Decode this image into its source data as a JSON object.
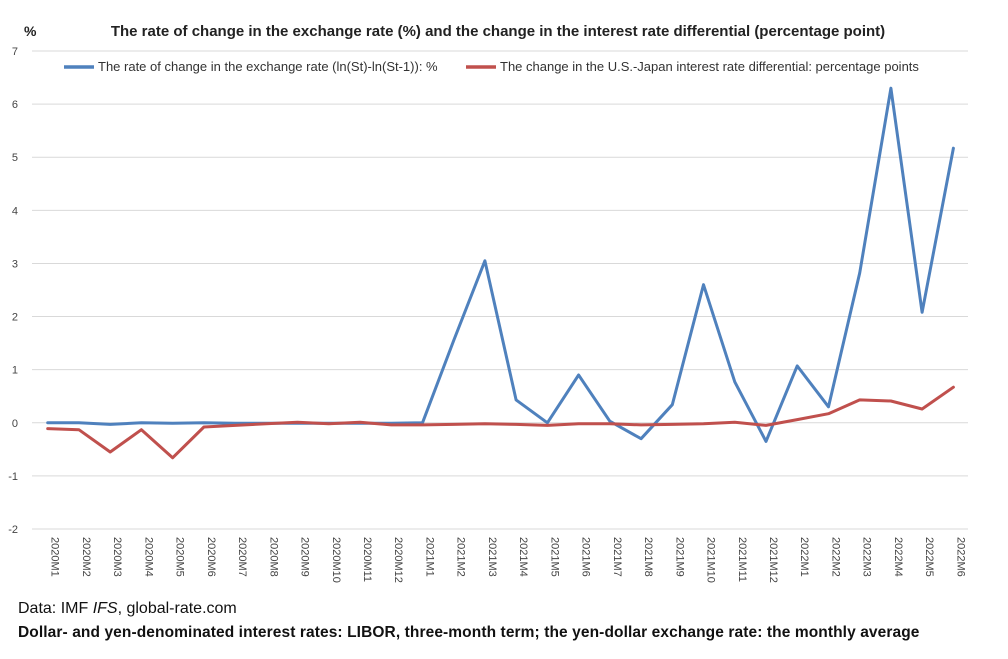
{
  "chart_data": {
    "type": "line",
    "title": "The rate of change in the exchange rate (%) and the change in the interest rate differential (percentage point)",
    "ylabel": "%",
    "ylim": [
      -2,
      7
    ],
    "yticks": [
      "-2",
      "-1",
      "0",
      "1",
      "2",
      "3",
      "4",
      "5",
      "6",
      "7"
    ],
    "grid": true,
    "legend_position": "top",
    "categories": [
      "2020M1",
      "2020M2",
      "2020M3",
      "2020M4",
      "2020M5",
      "2020M6",
      "2020M7",
      "2020M8",
      "2020M9",
      "2020M10",
      "2020M11",
      "2020M12",
      "2021M1",
      "2021M2",
      "2021M3",
      "2021M4",
      "2021M5",
      "2021M6",
      "2021M7",
      "2021M8",
      "2021M9",
      "2021M10",
      "2021M11",
      "2021M12",
      "2022M1",
      "2022M2",
      "2022M3",
      "2022M4",
      "2022M5",
      "2022M6"
    ],
    "series": [
      {
        "name": "The rate of change in the exchange rate (ln(St)-ln(St-1)): %",
        "color": "#4f81bd",
        "values": [
          0.0,
          0.0,
          -0.03,
          0.0,
          -0.01,
          0.0,
          -0.01,
          -0.01,
          -0.01,
          -0.01,
          -0.01,
          -0.01,
          0.0,
          1.55,
          3.05,
          0.43,
          0.0,
          0.9,
          0.03,
          -0.3,
          0.34,
          2.6,
          0.77,
          -0.35,
          1.07,
          0.3,
          2.82,
          6.3,
          2.08,
          5.17
        ]
      },
      {
        "name": "The change in the U.S.-Japan interest rate differential: percentage points",
        "color": "#c0504d",
        "values": [
          -0.11,
          -0.13,
          -0.55,
          -0.13,
          -0.66,
          -0.08,
          -0.05,
          -0.02,
          0.01,
          -0.02,
          0.01,
          -0.04,
          -0.04,
          -0.03,
          -0.02,
          -0.03,
          -0.05,
          -0.02,
          -0.02,
          -0.04,
          -0.03,
          -0.02,
          0.01,
          -0.05,
          0.06,
          0.17,
          0.43,
          0.41,
          0.26,
          0.67
        ]
      }
    ]
  },
  "source": {
    "prefix": "Data: IMF ",
    "ifs": "IFS",
    "suffix": ", global-rate.com"
  },
  "note": "Dollar- and yen-denominated interest rates: LIBOR, three-month term; the yen-dollar exchange rate: the monthly average"
}
